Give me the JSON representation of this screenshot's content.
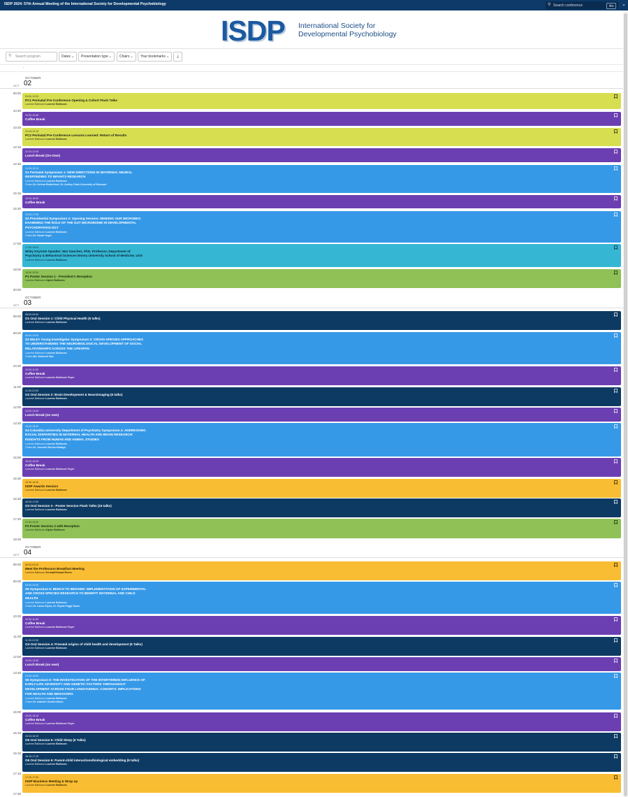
{
  "header": {
    "title": "ISDP 2024: 57th Annual Meeting of the International Society for Developmental Psychobiology",
    "search_placeholder": "Search conference",
    "shortcut": "⌘K"
  },
  "logo": {
    "mark": "ISDP",
    "name_line1": "International Society for",
    "name_line2": "Developmental Psychobiology"
  },
  "filters": {
    "search_placeholder": "Search program",
    "dates": "Dates",
    "presentation_type": "Presentation type",
    "chairs": "Chairs",
    "bookmarks": "Your bookmarks"
  },
  "program": {
    "dash": "-",
    "days": [
      {
        "month": "OCTOBER",
        "day": "02",
        "dow": "OCT",
        "times": [
          "09:00",
          "10:30",
          "10:45",
          "12:15",
          "12:45",
          "15:15",
          "15:30",
          "17:00",
          "18:00",
          "20:00"
        ],
        "events": [
          {
            "time": "09:00-10:30",
            "title": "PC1 Perinatal Pre-Conference Opening & Cohort Flash Talks",
            "room_label": "Lucerne Ballroom",
            "room": "Lucerne Ballroom",
            "chairs": ""
          },
          {
            "time": "10:30-10:45",
            "title": "Coffee Break",
            "room_label": "",
            "room": "",
            "chairs": ""
          },
          {
            "time": "10:45-12:15",
            "title": "PC2 Perinatal Pre-Conference Lessons Learned: Return of Results",
            "room_label": "Lucerne Ballroom",
            "room": "Lucerne Ballroom",
            "chairs": ""
          },
          {
            "time": "12:15-12:45",
            "title": "Lunch Break (On-Own)",
            "room_label": "",
            "room": "",
            "chairs": ""
          },
          {
            "time": "12:45-15:15",
            "title": "S1 Perinatal Symposium 1: NEW DIRECTIONS IN MATERNAL NEURAL RESPONDING TO INFANTS RESEARCH",
            "room_label": "Lucerne Ballroom",
            "room": "Lucerne Ballroom",
            "chairs": "Dr. Helena Rutherford, Dr. Ashley Clark University of Missouri"
          },
          {
            "time": "15:15-15:30",
            "title": "Coffee Break",
            "room_label": "",
            "room": "",
            "chairs": ""
          },
          {
            "time": "15:30-17:00",
            "title": "S2 Presidential Symposium 2: Opening Session: MINDING OUR MICROBES: EXAMINING THE ROLE OF THE GUT MICROBIOME IN DEVELOPMENTAL PSYCHOPATHOLOGY",
            "room_label": "Lucerne Ballroom",
            "room": "Lucerne Ballroom",
            "chairs": "Dr. Sarah Vogel"
          },
          {
            "time": "17:00-18:00",
            "title": "Wiley Keynote Speaker: Mar Sanchez, PhD, Professor, Department of Psychiatry & Behavioral Sciences Emory University School of Medicine, USA",
            "room_label": "Lucerne Ballroom",
            "room": "Lucerne Ballroom",
            "chairs": ""
          },
          {
            "time": "18:00-20:00",
            "title": "P1 Poster Session 1 - President's Reception",
            "room_label": "Lucerne Ballroom",
            "room": "Alpine Ballroom",
            "chairs": ""
          }
        ]
      },
      {
        "month": "OCTOBER",
        "day": "03",
        "dow": "OCT",
        "times": [
          "08:00",
          "09:00",
          "10:30",
          "11:00",
          "12:00",
          "13:30",
          "15:00",
          "15:30",
          "16:30",
          "17:30",
          "19:30"
        ],
        "events": [
          {
            "time": "08:00-09:00",
            "title": "O1 Oral Session 1: Child Physical Health (6 talks)",
            "room_label": "Lucerne Ballroom",
            "room": "Lucerne Ballroom",
            "chairs": ""
          },
          {
            "time": "09:00-10:30",
            "title": "S3 WILEY Young Investigator Symposium 3: CROSS-SPECIES APPROACHES TO UNDERSTANDING THE NEUROBIOLOGICAL DEVELOPMENT OF SOCIAL RELATIONSHIPS ACROSS THE LIFESPAN",
            "room_label": "Lucerne Ballroom",
            "room": "Lucerne Ballroom",
            "chairs": "Ms. Deborah Han"
          },
          {
            "time": "10:30-11:00",
            "title": "Coffee Break",
            "room_label": "Lucerne Ballroom",
            "room": "Lucerne Ballroom Foyer",
            "chairs": ""
          },
          {
            "time": "11:00-12:00",
            "title": "O2 Oral Session 2: Brain Development & Neuroimaging (6 talks)",
            "room_label": "Lucerne Ballroom",
            "room": "Lucerne Ballroom",
            "chairs": ""
          },
          {
            "time": "12:00-13:30",
            "title": "Lunch Break (on own)",
            "room_label": "",
            "room": "",
            "chairs": ""
          },
          {
            "time": "13:30-15:00",
            "title": "S4 Columbia University Department of Psychiatry Symposium 4: ADDRESSING RACIAL DISPARITIES IN MATERNAL HEALTH AND BRAIN RESEARCH: INSIGHTS FROM HUMAN AND ANIMAL STUDIES",
            "room_label": "Lucerne Ballroom",
            "room": "Lucerne Ballroom",
            "chairs": "Dr. Joscelin Rocha-Hidalgo"
          },
          {
            "time": "15:00-15:30",
            "title": "Coffee Break",
            "room_label": "Lucerne Ballroom",
            "room": "Lucerne Ballroom Foyer",
            "chairs": ""
          },
          {
            "time": "15:30-16:30",
            "title": "ISDP Awards Session",
            "room_label": "Lucerne Ballroom",
            "room": "Lucerne Ballroom",
            "chairs": ""
          },
          {
            "time": "16:30-17:30",
            "title": "O3 Oral Session 3 - Poster Session Flash Talks (15 talks)",
            "room_label": "Lucerne Ballroom",
            "room": "Lucerne Ballroom",
            "chairs": ""
          },
          {
            "time": "17:30-19:30",
            "title": "P2 Poster Session 2 with Reception",
            "room_label": "Lucerne Ballroom",
            "room": "Alpine Ballroom",
            "chairs": ""
          }
        ]
      },
      {
        "month": "OCTOBER",
        "day": "04",
        "dow": "OCT",
        "times": [
          "08:00",
          "09:00",
          "10:30",
          "11:00",
          "12:00",
          "13:30",
          "15:00",
          "15:15",
          "16:15",
          "17:15",
          "17:30"
        ],
        "events": [
          {
            "time": "08:00-09:00",
            "title": "Meet the Professors Breakfast Meeting",
            "room_label": "Lucerne Ballroom",
            "room": "Zermatt/Gstaad Room",
            "chairs": ""
          },
          {
            "time": "09:00-10:30",
            "title": "S5 Symposium 5: BENCH TO BEDSIDE: IMPLEMENTATION OF EXPERIMENTAL AND CROSS-SPECIES RESEARCH TO BENEFIT MATERNAL AND CHILD HEALTH",
            "room_label": "Lucerne Ballroom",
            "room": "Lucerne Ballroom",
            "chairs": "Dr. Laura Glynn, Dr. Elysia Poggi Davis"
          },
          {
            "time": "10:30-11:00",
            "title": "Coffee Break",
            "room_label": "Lucerne Ballroom",
            "room": "Lucerne Ballroom Foyer",
            "chairs": ""
          },
          {
            "time": "11:00-12:00",
            "title": "O4 Oral Session 4: Prenatal origins of child health and development (6 Talks)",
            "room_label": "Lucerne Ballroom",
            "room": "Lucerne Ballroom",
            "chairs": ""
          },
          {
            "time": "12:00-13:30",
            "title": "Lunch Break (on own)",
            "room_label": "",
            "room": "",
            "chairs": ""
          },
          {
            "time": "13:30-15:00",
            "title": "S6 Symposium 6: THE INVESTIGATION OF THE INTERTWINED INFLUENCE OF EARLY-LIFE ADVERSITY AND GENETIC FACTORS THROUGHOUT DEVELOPMENT ACROSS FOUR LONGITUDINAL COHORTS: IMPLICATIONS FOR HEALTH AND BEHAVIORS",
            "room_label": "Lucerne Ballroom",
            "room": "Lucerne Ballroom",
            "chairs": "Dr. Isabelle Ouellet-Morin"
          },
          {
            "time": "15:00-15:15",
            "title": "Coffee Break",
            "room_label": "Lucerne Ballroom",
            "room": "Lucerne Ballroom Foyer",
            "chairs": ""
          },
          {
            "time": "15:15-16:15",
            "title": "O5 Oral Session 5: Child Sleep (6 Talks)",
            "room_label": "Lucerne Ballroom",
            "room": "Lucerne Ballroom",
            "chairs": ""
          },
          {
            "time": "16:15-17:15",
            "title": "O6 Oral Session 6: Parent-child interactions/biological embedding (6 talks)",
            "room_label": "Lucerne Ballroom",
            "room": "Lucerne Ballroom",
            "chairs": ""
          },
          {
            "time": "17:15-17:30",
            "title": "ISDP Business Meeting & Wrap up",
            "room_label": "Lucerne Ballroom",
            "room": "Lucerne Ballroom",
            "chairs": ""
          }
        ]
      }
    ],
    "chairs_label": "Chairs"
  },
  "colors": {
    "lime": "#d7de4f",
    "purple": "#6b3fb2",
    "blue": "#3699e8",
    "teal": "#35b7d4",
    "green": "#8fc156",
    "navy": "#0d3a63",
    "yellow": "#f9bd33",
    "header": "#0d3a68"
  }
}
